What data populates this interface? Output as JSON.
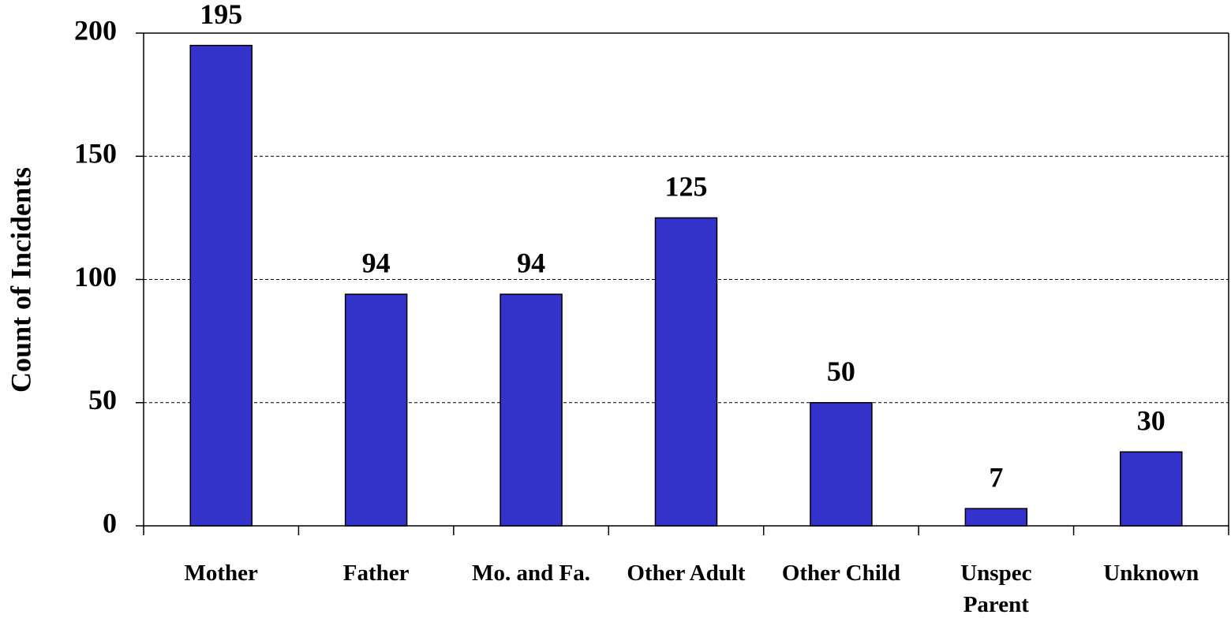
{
  "chart_data": {
    "type": "bar",
    "y_label": "Count of Incidents",
    "categories": [
      "Mother",
      "Father",
      "Mo. and Fa.",
      "Other Adult",
      "Other Child",
      "Unspec Parent",
      "Unknown"
    ],
    "values": [
      195,
      94,
      94,
      125,
      50,
      7,
      30
    ],
    "color": "#3333cc",
    "ylim": [
      0,
      200
    ],
    "yticks": [
      0,
      50,
      100,
      150,
      200
    ],
    "grid": true
  }
}
